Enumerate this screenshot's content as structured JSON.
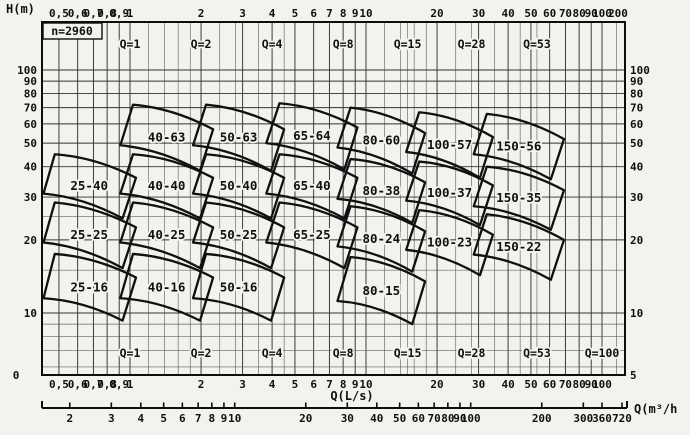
{
  "chart_data": {
    "type": "area",
    "subtype": "pump-model-selection-map",
    "title": "",
    "speed_label": "n=2960",
    "x_axis": {
      "label": "Q(L/s)",
      "scale": "log",
      "range": [
        0.42,
        200
      ],
      "major_ticks": [
        "0,5",
        "0,6",
        "0,7",
        "0,8",
        "0,9",
        "1",
        "2",
        "3",
        "4",
        "5",
        "6",
        "7",
        "8",
        "9",
        "10",
        "20",
        "30",
        "40",
        "50",
        "60",
        "70",
        "80",
        "90",
        "100"
      ],
      "major_values": [
        0.5,
        0.6,
        0.7,
        0.8,
        0.9,
        1,
        2,
        3,
        4,
        5,
        6,
        7,
        8,
        9,
        10,
        20,
        30,
        40,
        50,
        60,
        70,
        80,
        90,
        100
      ],
      "edge_tick_label": "200",
      "minor_values": [
        1.2,
        1.4,
        1.6,
        1.8,
        2.4,
        2.8,
        3.5,
        4.5,
        12,
        14,
        15,
        16,
        18,
        24,
        28,
        35,
        45,
        53,
        115
      ],
      "grid": true
    },
    "x_axis_secondary": {
      "label": "Q(m³/h",
      "unit_factor_from_Ls": 3.6,
      "tick_labels": [
        "2",
        "3",
        "4",
        "5",
        "6",
        "7",
        "8",
        "9",
        "10",
        "20",
        "30",
        "40",
        "50",
        "60",
        "70",
        "80",
        "90",
        "100",
        "200",
        "300",
        "360",
        "720"
      ],
      "tick_values": [
        2,
        3,
        4,
        5,
        6,
        7,
        8,
        9,
        10,
        20,
        30,
        40,
        50,
        60,
        70,
        80,
        90,
        100,
        200,
        300,
        360,
        720
      ]
    },
    "y_axis": {
      "label": "H(m)",
      "scale": "log",
      "range": [
        5,
        158
      ],
      "major_ticks": [
        "10",
        "20",
        "30",
        "40",
        "50",
        "60",
        "70",
        "80",
        "90",
        "100"
      ],
      "major_values": [
        10,
        20,
        30,
        40,
        50,
        60,
        70,
        80,
        90,
        100
      ],
      "minor_values": [
        6,
        7,
        8,
        9,
        15,
        25
      ],
      "bottom_left_label": "0",
      "bottom_right_label": "5",
      "grid": true
    },
    "iso_flow_labels": {
      "prefix": "Q=",
      "top_values": [
        1,
        2,
        4,
        8,
        15,
        28,
        53
      ],
      "bottom_values": [
        1,
        2,
        4,
        8,
        15,
        28,
        53,
        100
      ]
    },
    "regions": [
      {
        "label": "40-63",
        "tl": [
          1.03,
          72
        ],
        "tr": [
          2.25,
          57
        ],
        "br": [
          1.98,
          38.5
        ],
        "bl": [
          0.91,
          49
        ]
      },
      {
        "label": "50-63",
        "tl": [
          2.1,
          72
        ],
        "tr": [
          4.5,
          57
        ],
        "br": [
          3.96,
          38.5
        ],
        "bl": [
          1.85,
          49
        ]
      },
      {
        "label": "65-64",
        "tl": [
          4.3,
          73
        ],
        "tr": [
          9.2,
          58
        ],
        "br": [
          8.1,
          39
        ],
        "bl": [
          3.78,
          50
        ]
      },
      {
        "label": "80-60",
        "tl": [
          8.6,
          70
        ],
        "tr": [
          17.8,
          55
        ],
        "br": [
          15.7,
          37.5
        ],
        "bl": [
          7.57,
          48
        ]
      },
      {
        "label": "100-57",
        "tl": [
          16.8,
          67
        ],
        "tr": [
          34.5,
          53
        ],
        "br": [
          30.4,
          36
        ],
        "bl": [
          14.8,
          46
        ]
      },
      {
        "label": "150-56",
        "tl": [
          32.5,
          66
        ],
        "tr": [
          69,
          52
        ],
        "br": [
          60.7,
          35.5
        ],
        "bl": [
          28.6,
          45
        ]
      },
      {
        "label": "25-40",
        "tl": [
          0.48,
          45
        ],
        "tr": [
          1.06,
          36
        ],
        "br": [
          0.93,
          24.5
        ],
        "bl": [
          0.43,
          31
        ]
      },
      {
        "label": "40-40",
        "tl": [
          1.03,
          45
        ],
        "tr": [
          2.25,
          36
        ],
        "br": [
          1.98,
          24.5
        ],
        "bl": [
          0.91,
          31
        ]
      },
      {
        "label": "50-40",
        "tl": [
          2.1,
          45
        ],
        "tr": [
          4.5,
          36
        ],
        "br": [
          3.96,
          24.5
        ],
        "bl": [
          1.85,
          31
        ]
      },
      {
        "label": "65-40",
        "tl": [
          4.3,
          45
        ],
        "tr": [
          9.2,
          36
        ],
        "br": [
          8.1,
          24.5
        ],
        "bl": [
          3.78,
          31
        ]
      },
      {
        "label": "80-38",
        "tl": [
          8.6,
          43
        ],
        "tr": [
          17.8,
          34.5
        ],
        "br": [
          15.7,
          23.5
        ],
        "bl": [
          7.57,
          29.5
        ]
      },
      {
        "label": "100-37",
        "tl": [
          16.8,
          42
        ],
        "tr": [
          34.5,
          33.5
        ],
        "br": [
          30.4,
          23
        ],
        "bl": [
          14.8,
          29
        ]
      },
      {
        "label": "150-35",
        "tl": [
          32.5,
          40
        ],
        "tr": [
          69,
          32
        ],
        "br": [
          60.7,
          22
        ],
        "bl": [
          28.6,
          27.5
        ]
      },
      {
        "label": "25-25",
        "tl": [
          0.48,
          28.5
        ],
        "tr": [
          1.06,
          22.5
        ],
        "br": [
          0.93,
          15.3
        ],
        "bl": [
          0.43,
          19.5
        ]
      },
      {
        "label": "40-25",
        "tl": [
          1.03,
          28.5
        ],
        "tr": [
          2.25,
          22.5
        ],
        "br": [
          1.98,
          15.3
        ],
        "bl": [
          0.91,
          19.5
        ]
      },
      {
        "label": "50-25",
        "tl": [
          2.1,
          28.5
        ],
        "tr": [
          4.5,
          22.5
        ],
        "br": [
          3.96,
          15.3
        ],
        "bl": [
          1.85,
          19.5
        ]
      },
      {
        "label": "65-25",
        "tl": [
          4.3,
          28.5
        ],
        "tr": [
          9.2,
          22.5
        ],
        "br": [
          8.1,
          15.3
        ],
        "bl": [
          3.78,
          19.5
        ]
      },
      {
        "label": "80-24",
        "tl": [
          8.6,
          27.5
        ],
        "tr": [
          17.8,
          21.7
        ],
        "br": [
          15.7,
          14.8
        ],
        "bl": [
          7.57,
          18.8
        ]
      },
      {
        "label": "100-23",
        "tl": [
          16.8,
          26.5
        ],
        "tr": [
          34.5,
          21
        ],
        "br": [
          30.4,
          14.3
        ],
        "bl": [
          14.8,
          18.2
        ]
      },
      {
        "label": "150-22",
        "tl": [
          32.5,
          25.5
        ],
        "tr": [
          69,
          20
        ],
        "br": [
          60.7,
          13.7
        ],
        "bl": [
          28.6,
          17.4
        ]
      },
      {
        "label": "25-16",
        "tl": [
          0.48,
          17.5
        ],
        "tr": [
          1.06,
          14
        ],
        "br": [
          0.93,
          9.3
        ],
        "bl": [
          0.43,
          11.5
        ]
      },
      {
        "label": "40-16",
        "tl": [
          1.03,
          17.5
        ],
        "tr": [
          2.25,
          14
        ],
        "br": [
          1.98,
          9.3
        ],
        "bl": [
          0.91,
          11.5
        ]
      },
      {
        "label": "50-16",
        "tl": [
          2.1,
          17.5
        ],
        "tr": [
          4.5,
          14
        ],
        "br": [
          3.96,
          9.3
        ],
        "bl": [
          1.85,
          11.5
        ]
      },
      {
        "label": "80-15",
        "tl": [
          8.6,
          17
        ],
        "tr": [
          17.8,
          13.5
        ],
        "br": [
          15.7,
          9.0
        ],
        "bl": [
          7.57,
          11.2
        ]
      }
    ],
    "colors": {
      "paper": "#f3f2ee",
      "grid_minor": "#4d4d4d",
      "grid_major": "#333333",
      "frame": "#0d0d0d",
      "region_stroke": "#101010",
      "text": "#101010"
    }
  }
}
